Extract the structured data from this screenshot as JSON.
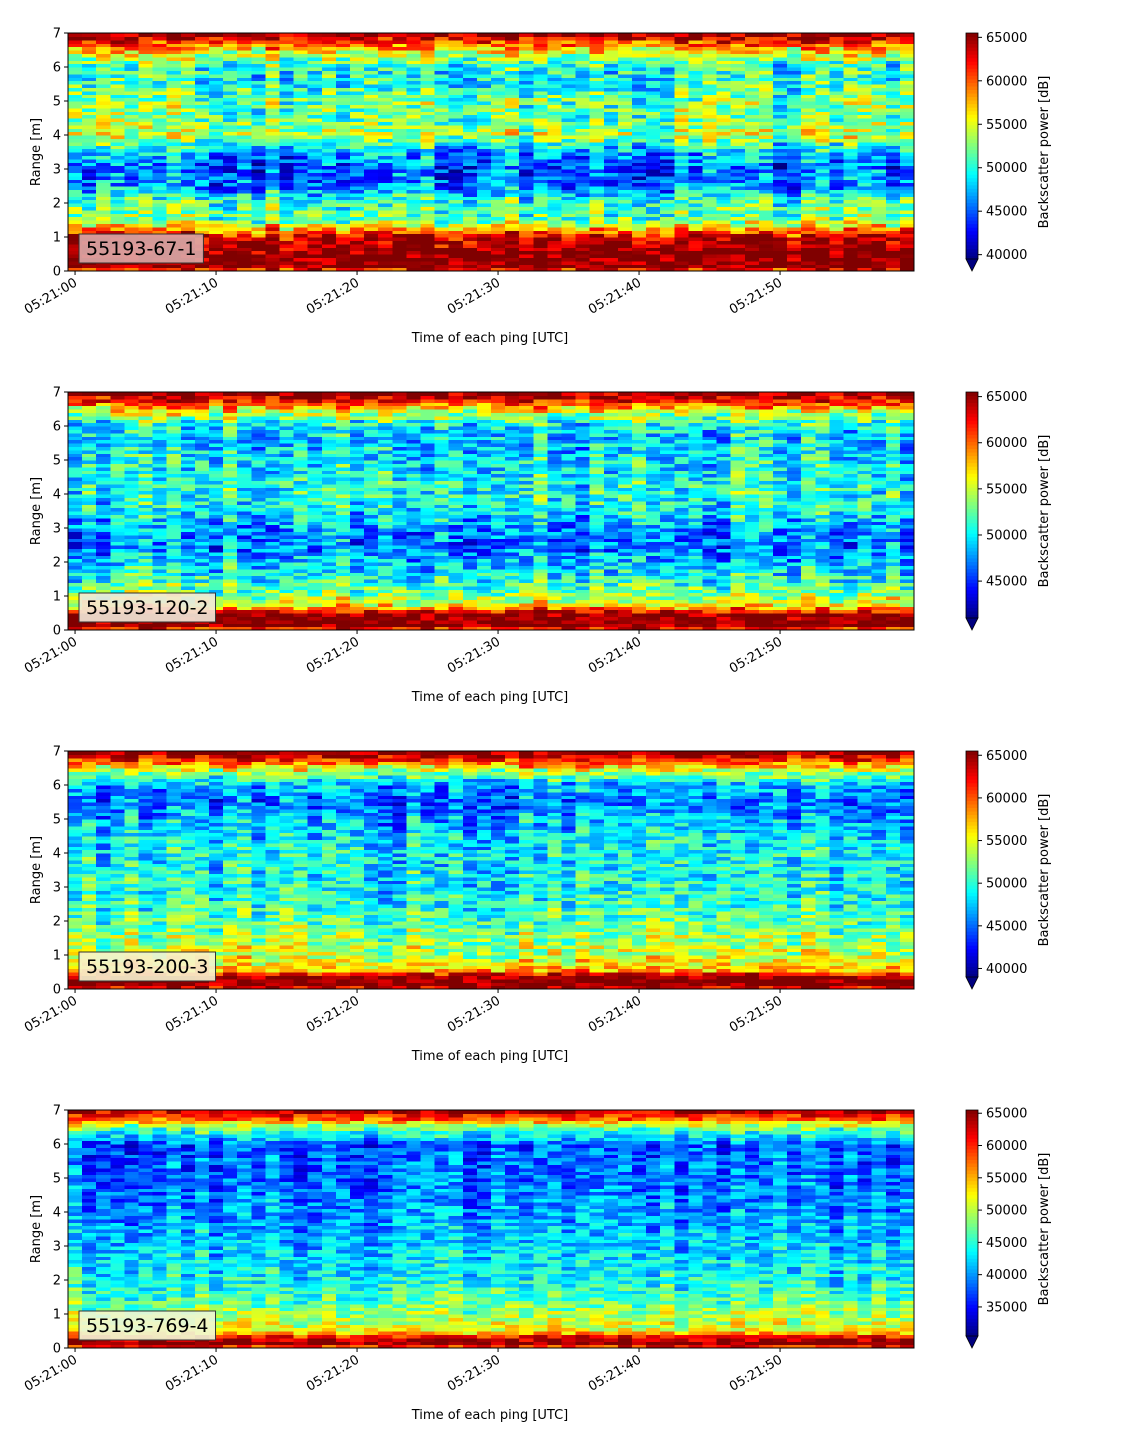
{
  "chart_data": [
    {
      "type": "heatmap",
      "label_box": "55193-67-1",
      "label_box_color": "#dbaaa8",
      "xlabel": "Time of each ping [UTC]",
      "ylabel": "Range [m]",
      "x_tick_labels": [
        "05:21:00",
        "05:21:10",
        "05:21:20",
        "05:21:30",
        "05:21:40",
        "05:21:50"
      ],
      "x_range_seconds": [
        -0.5,
        59.5
      ],
      "ylim": [
        0,
        7
      ],
      "y_ticks": [
        0,
        1,
        2,
        3,
        4,
        5,
        6,
        7
      ],
      "colorbar_label": "Backscatter power [dB]",
      "colorbar_ticks": [
        40000,
        45000,
        50000,
        55000,
        60000,
        65000
      ],
      "colorbar_range": [
        39500,
        65500
      ],
      "colormap": "jet",
      "colorbar_extend": "min",
      "profile": [
        {
          "y": 0.0,
          "v": 60000
        },
        {
          "y": 0.15,
          "v": 66000
        },
        {
          "y": 0.5,
          "v": 66000
        },
        {
          "y": 1.0,
          "v": 64000
        },
        {
          "y": 1.25,
          "v": 58000
        },
        {
          "y": 1.5,
          "v": 52000
        },
        {
          "y": 2.0,
          "v": 51000
        },
        {
          "y": 2.5,
          "v": 46000
        },
        {
          "y": 3.0,
          "v": 45000
        },
        {
          "y": 3.5,
          "v": 47000
        },
        {
          "y": 4.0,
          "v": 54000
        },
        {
          "y": 4.5,
          "v": 52000
        },
        {
          "y": 5.0,
          "v": 52000
        },
        {
          "y": 5.5,
          "v": 50000
        },
        {
          "y": 6.0,
          "v": 50000
        },
        {
          "y": 6.4,
          "v": 55000
        },
        {
          "y": 6.7,
          "v": 60000
        },
        {
          "y": 7.0,
          "v": 66000
        }
      ],
      "noise": 5000
    },
    {
      "type": "heatmap",
      "label_box": "55193-120-2",
      "label_box_color": "#f3e9d9",
      "xlabel": "Time of each ping [UTC]",
      "ylabel": "Range [m]",
      "x_tick_labels": [
        "05:21:00",
        "05:21:10",
        "05:21:20",
        "05:21:30",
        "05:21:40",
        "05:21:50"
      ],
      "x_range_seconds": [
        -0.5,
        59.5
      ],
      "ylim": [
        0,
        7
      ],
      "y_ticks": [
        0,
        1,
        2,
        3,
        4,
        5,
        6,
        7
      ],
      "colorbar_label": "Backscatter power [dB]",
      "colorbar_ticks": [
        45000,
        50000,
        55000,
        60000,
        65000
      ],
      "colorbar_range": [
        41000,
        65500
      ],
      "colormap": "jet",
      "colorbar_extend": "min",
      "profile": [
        {
          "y": 0.0,
          "v": 60000
        },
        {
          "y": 0.15,
          "v": 66000
        },
        {
          "y": 0.45,
          "v": 66000
        },
        {
          "y": 0.7,
          "v": 57000
        },
        {
          "y": 1.0,
          "v": 54000
        },
        {
          "y": 1.5,
          "v": 51000
        },
        {
          "y": 2.0,
          "v": 49000
        },
        {
          "y": 2.5,
          "v": 47000
        },
        {
          "y": 3.0,
          "v": 48000
        },
        {
          "y": 3.5,
          "v": 50000
        },
        {
          "y": 4.0,
          "v": 51000
        },
        {
          "y": 5.0,
          "v": 50000
        },
        {
          "y": 5.5,
          "v": 49000
        },
        {
          "y": 6.0,
          "v": 50000
        },
        {
          "y": 6.4,
          "v": 55000
        },
        {
          "y": 6.7,
          "v": 61000
        },
        {
          "y": 7.0,
          "v": 66000
        }
      ],
      "noise": 4500
    },
    {
      "type": "heatmap",
      "label_box": "55193-200-3",
      "label_box_color": "#f6f3cf",
      "xlabel": "Time of each ping [UTC]",
      "ylabel": "Range [m]",
      "x_tick_labels": [
        "05:21:00",
        "05:21:10",
        "05:21:20",
        "05:21:30",
        "05:21:40",
        "05:21:50"
      ],
      "x_range_seconds": [
        -0.5,
        59.5
      ],
      "ylim": [
        0,
        7
      ],
      "y_ticks": [
        0,
        1,
        2,
        3,
        4,
        5,
        6,
        7
      ],
      "colorbar_label": "Backscatter power [dB]",
      "colorbar_ticks": [
        40000,
        45000,
        50000,
        55000,
        60000,
        65000
      ],
      "colorbar_range": [
        39000,
        65500
      ],
      "colormap": "jet",
      "colorbar_extend": "min",
      "profile": [
        {
          "y": 0.0,
          "v": 62000
        },
        {
          "y": 0.15,
          "v": 66000
        },
        {
          "y": 0.35,
          "v": 66000
        },
        {
          "y": 0.55,
          "v": 58000
        },
        {
          "y": 1.0,
          "v": 54000
        },
        {
          "y": 1.5,
          "v": 53000
        },
        {
          "y": 2.0,
          "v": 51000
        },
        {
          "y": 3.0,
          "v": 49000
        },
        {
          "y": 4.0,
          "v": 49000
        },
        {
          "y": 5.0,
          "v": 47000
        },
        {
          "y": 5.5,
          "v": 45000
        },
        {
          "y": 6.0,
          "v": 47000
        },
        {
          "y": 6.4,
          "v": 53000
        },
        {
          "y": 6.7,
          "v": 60000
        },
        {
          "y": 7.0,
          "v": 66000
        }
      ],
      "noise": 4500
    },
    {
      "type": "heatmap",
      "label_box": "55193-769-4",
      "label_box_color": "#eff6d6",
      "xlabel": "Time of each ping [UTC]",
      "ylabel": "Range [m]",
      "x_tick_labels": [
        "05:21:00",
        "05:21:10",
        "05:21:20",
        "05:21:30",
        "05:21:40",
        "05:21:50"
      ],
      "x_range_seconds": [
        -0.5,
        59.5
      ],
      "ylim": [
        0,
        7
      ],
      "y_ticks": [
        0,
        1,
        2,
        3,
        4,
        5,
        6,
        7
      ],
      "colorbar_label": "Backscatter power [dB]",
      "colorbar_ticks": [
        35000,
        40000,
        45000,
        50000,
        55000,
        60000,
        65000
      ],
      "colorbar_range": [
        30500,
        65500
      ],
      "colormap": "jet",
      "colorbar_extend": "min",
      "profile": [
        {
          "y": 0.0,
          "v": 56000
        },
        {
          "y": 0.12,
          "v": 66000
        },
        {
          "y": 0.3,
          "v": 63000
        },
        {
          "y": 0.5,
          "v": 52000
        },
        {
          "y": 1.0,
          "v": 49000
        },
        {
          "y": 1.5,
          "v": 46000
        },
        {
          "y": 2.0,
          "v": 44000
        },
        {
          "y": 3.0,
          "v": 42000
        },
        {
          "y": 4.0,
          "v": 40000
        },
        {
          "y": 5.0,
          "v": 39000
        },
        {
          "y": 6.0,
          "v": 38000
        },
        {
          "y": 6.5,
          "v": 48000
        },
        {
          "y": 6.75,
          "v": 58000
        },
        {
          "y": 7.0,
          "v": 64000
        }
      ],
      "noise": 5000
    }
  ]
}
